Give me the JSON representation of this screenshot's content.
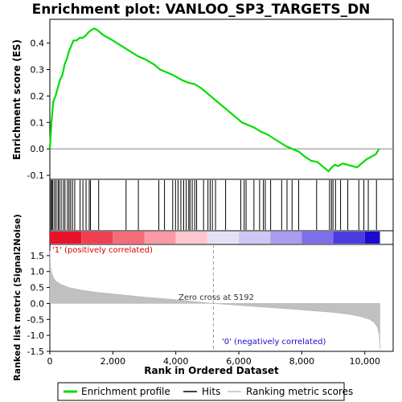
{
  "chart_data": [
    {
      "panel": "enrichment",
      "type": "line",
      "title": "Enrichment plot: VANLOO_SP3_TARGETS_DN",
      "ylabel": "Enrichment score (ES)",
      "xlim": [
        0,
        10900
      ],
      "ylim": [
        -0.115,
        0.49
      ],
      "yticks": [
        -0.1,
        0.0,
        0.1,
        0.2,
        0.3,
        0.4
      ],
      "ytick_labels": [
        "-0.1",
        "0.0",
        "0.1",
        "0.2",
        "0.3",
        "0.4"
      ],
      "color": "#00dd00",
      "series": [
        {
          "x": [
            0,
            50,
            110,
            180,
            250,
            320,
            400,
            470,
            540,
            610,
            680,
            750,
            850,
            950,
            1050,
            1150,
            1220,
            1320,
            1420,
            1500,
            1700,
            2000,
            2400,
            2800,
            3000,
            3300,
            3500,
            3700,
            3900,
            4200,
            4400,
            4600,
            4800,
            5000,
            5300,
            5600,
            5900,
            6100,
            6300,
            6500,
            6700,
            6900,
            7100,
            7300,
            7500,
            7700,
            7900,
            8100,
            8300,
            8500,
            8700,
            8850,
            8950,
            9050,
            9150,
            9300,
            9450,
            9600,
            9750,
            9850,
            9950,
            10050,
            10200,
            10350,
            10450
          ],
          "y": [
            0.0,
            0.1,
            0.18,
            0.2,
            0.23,
            0.26,
            0.28,
            0.32,
            0.34,
            0.37,
            0.39,
            0.41,
            0.41,
            0.42,
            0.42,
            0.43,
            0.44,
            0.45,
            0.455,
            0.45,
            0.43,
            0.41,
            0.38,
            0.35,
            0.34,
            0.32,
            0.3,
            0.29,
            0.28,
            0.26,
            0.25,
            0.245,
            0.23,
            0.21,
            0.18,
            0.15,
            0.12,
            0.1,
            0.09,
            0.08,
            0.065,
            0.055,
            0.04,
            0.025,
            0.01,
            0.0,
            -0.01,
            -0.03,
            -0.045,
            -0.05,
            -0.07,
            -0.085,
            -0.07,
            -0.06,
            -0.065,
            -0.055,
            -0.06,
            -0.065,
            -0.07,
            -0.06,
            -0.05,
            -0.04,
            -0.03,
            -0.02,
            0.0
          ]
        }
      ]
    },
    {
      "panel": "hits",
      "type": "scatter",
      "marks": "vertical lines",
      "xlim": [
        0,
        10900
      ],
      "x": [
        35,
        70,
        95,
        150,
        200,
        260,
        300,
        360,
        430,
        480,
        560,
        610,
        660,
        720,
        790,
        960,
        1050,
        1150,
        1250,
        1290,
        1550,
        2420,
        2810,
        3460,
        3640,
        3900,
        3990,
        4070,
        4160,
        4250,
        4330,
        4410,
        4450,
        4520,
        4600,
        4660,
        4880,
        5020,
        5090,
        5160,
        5260,
        5580,
        6060,
        6170,
        6230,
        6480,
        6660,
        6780,
        6840,
        7010,
        7360,
        7530,
        7690,
        7900,
        8470,
        8880,
        8940,
        8990,
        9070,
        9230,
        9460,
        9810,
        9970,
        10110,
        10370
      ]
    },
    {
      "panel": "rank-bar",
      "type": "heatmap",
      "xlim": [
        0,
        10900
      ],
      "bins_x": [
        0,
        1000,
        2000,
        3000,
        4000,
        5000,
        6000,
        7000,
        8000,
        9000,
        10000,
        10480
      ],
      "colors": [
        "#e8122a",
        "#f03f52",
        "#f76c7b",
        "#fb9aa4",
        "#fdc7cd",
        "#e6e0f7",
        "#cfc7f4",
        "#a89cf0",
        "#7d6ee9",
        "#4b3ce0",
        "#1a0bcf"
      ],
      "label_pos": "'1' (positively correlated)",
      "label_neg": "'0' (negatively correlated)"
    },
    {
      "panel": "ranked-metric",
      "type": "area",
      "ylabel": "Ranked list metric (Signal2Noise)",
      "xlabel": "Rank in Ordered Dataset",
      "xlim": [
        0,
        10900
      ],
      "ylim": [
        -1.5,
        1.85
      ],
      "xticks": [
        0,
        2000,
        4000,
        6000,
        8000,
        10000
      ],
      "xtick_labels": [
        "0",
        "2,000",
        "4,000",
        "6,000",
        "8,000",
        "10,000"
      ],
      "yticks": [
        -1.5,
        -1.0,
        -0.5,
        0.0,
        0.5,
        1.0,
        1.5
      ],
      "ytick_labels": [
        "-1.5",
        "-1.0",
        "-0.5",
        "0.0",
        "0.5",
        "1.0",
        "1.5"
      ],
      "x": [
        0,
        20,
        60,
        120,
        200,
        350,
        600,
        1000,
        1500,
        2000,
        3000,
        4000,
        5192,
        6000,
        7000,
        8000,
        9000,
        9500,
        9900,
        10150,
        10300,
        10400,
        10460,
        10480
      ],
      "y": [
        1.65,
        1.15,
        0.95,
        0.8,
        0.7,
        0.6,
        0.5,
        0.42,
        0.35,
        0.3,
        0.2,
        0.12,
        0.0,
        -0.06,
        -0.13,
        -0.2,
        -0.28,
        -0.34,
        -0.42,
        -0.5,
        -0.6,
        -0.75,
        -1.0,
        -1.42
      ],
      "zero_cross_label": "Zero cross at 5192",
      "zero_cross_x": 5192
    }
  ],
  "legend": {
    "items": [
      {
        "label": "Enrichment profile",
        "color": "#00dd00",
        "style": "line"
      },
      {
        "label": "Hits",
        "color": "#000000",
        "style": "line"
      },
      {
        "label": "Ranking metric scores",
        "color": "#c0c0c0",
        "style": "line"
      }
    ]
  }
}
